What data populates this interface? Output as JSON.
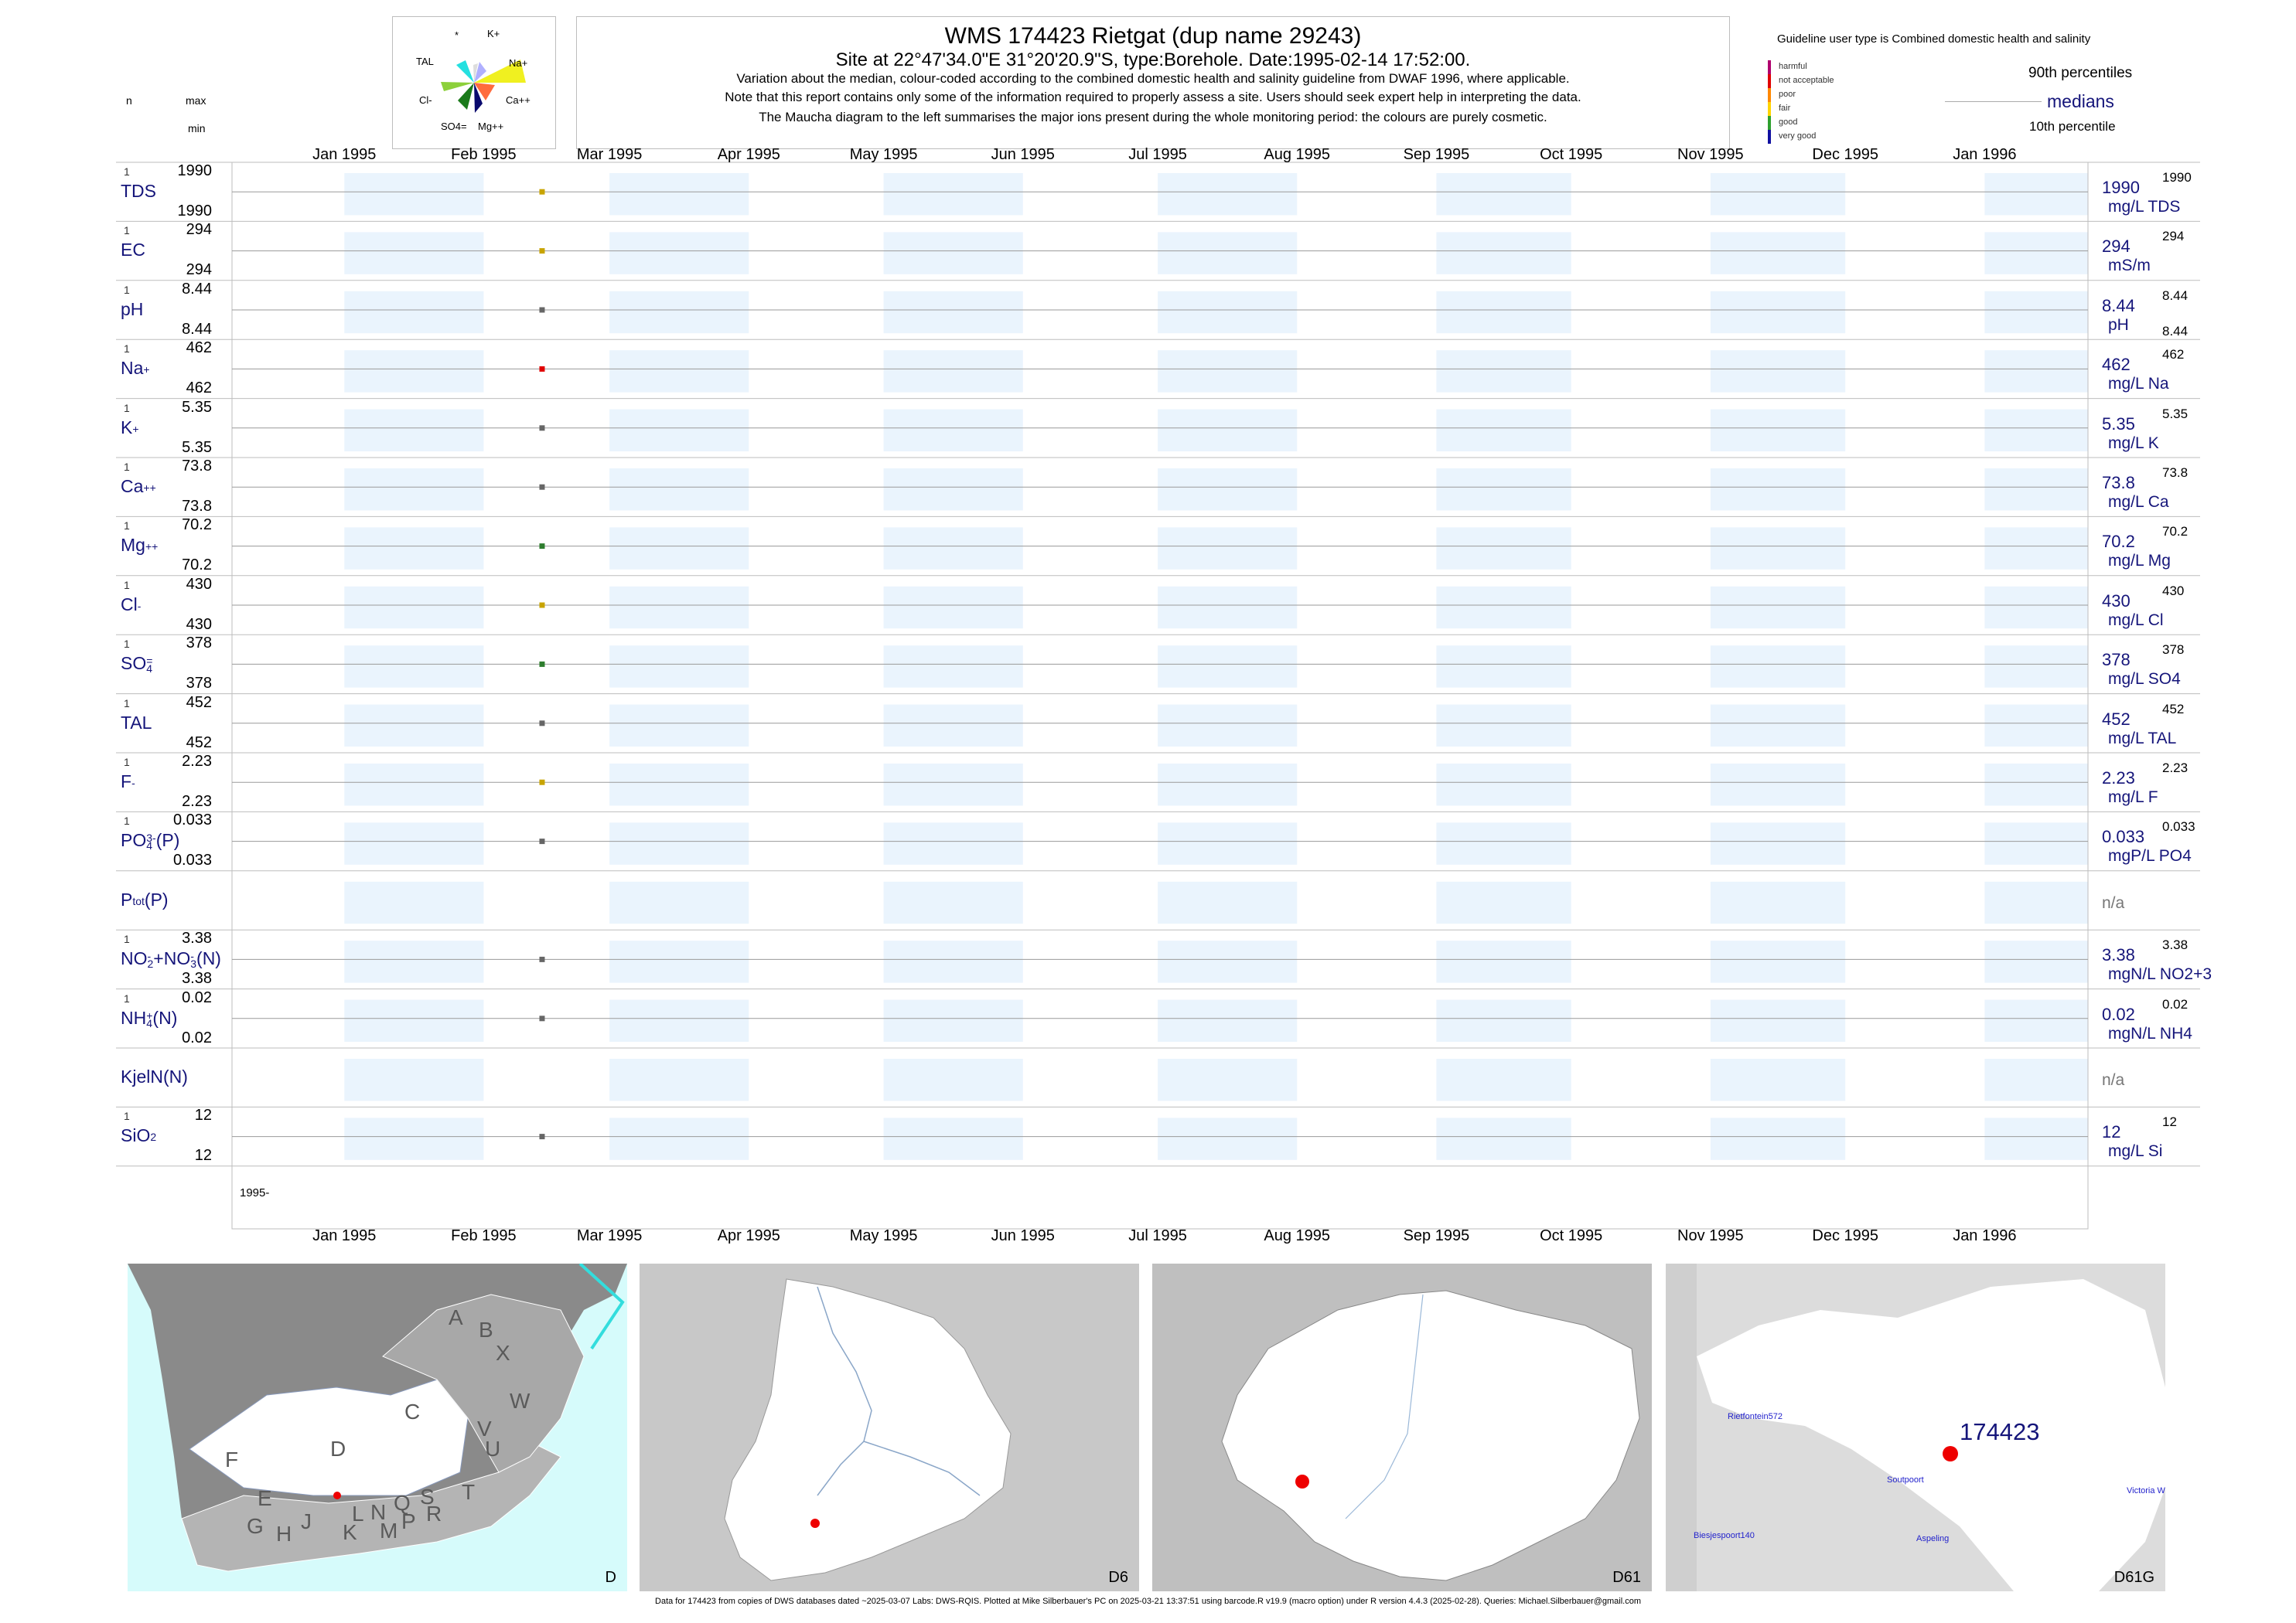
{
  "header": {
    "title": "WMS 174423  Rietgat (dup name 29243)",
    "subtitle": "Site at 22°47'34.0\"E 31°20'20.9\"S, type:Borehole. Date:1995-02-14 17:52:00.",
    "line1": "Variation about the median,  colour-coded according to the combined domestic health and salinity guideline from DWAF 1996, where applicable.",
    "line2": "Note that this report contains only some of the information required to properly assess a site. Users should seek expert help in interpreting the data.",
    "line3": "The Maucha diagram to the left summarises the major ions present during the whole monitoring period: the colours are purely cosmetic."
  },
  "left_header": {
    "n": "n",
    "max": "max",
    "min": "min"
  },
  "maucha": {
    "labels": [
      "*",
      "K+",
      "TAL",
      "Na+",
      "Cl-",
      "Ca++",
      "SO4=",
      "Mg++"
    ]
  },
  "guideline": {
    "title": "Guideline user type is Combined domestic health and salinity",
    "classes": [
      {
        "label": "harmful",
        "color": "#b0006e"
      },
      {
        "label": "not acceptable",
        "color": "#e00000"
      },
      {
        "label": "poor",
        "color": "#ff8800"
      },
      {
        "label": "fair",
        "color": "#ffd400"
      },
      {
        "label": "good",
        "color": "#2ea02e"
      },
      {
        "label": "very good",
        "color": "#1010a0"
      }
    ],
    "p90": "90th percentiles",
    "medians": "medians",
    "p10": "10th percentile"
  },
  "chart_data": {
    "type": "scatter",
    "x_axis": {
      "ticks": [
        "Jan 1995",
        "Feb 1995",
        "Mar 1995",
        "Apr 1995",
        "May 1995",
        "Jun 1995",
        "Jul 1995",
        "Aug 1995",
        "Sep 1995",
        "Oct 1995",
        "Nov 1995",
        "Dec 1995",
        "Jan 1996"
      ],
      "range": [
        "1994-12-07",
        "1996-01-24"
      ],
      "bottom_label": "1995-"
    },
    "sample_date": "1995-02-14",
    "series": [
      {
        "label": "TDS",
        "sub": "",
        "sup": "",
        "n": "1",
        "max": "1990",
        "min": "1990",
        "median": "1990",
        "unit": "mg/L TDS",
        "p90": "1990",
        "p10": "",
        "value": 1990,
        "color": "#c8a400"
      },
      {
        "label": "EC",
        "sub": "",
        "sup": "",
        "n": "1",
        "max": "294",
        "min": "294",
        "median": "294",
        "unit": "mS/m",
        "p90": "294",
        "p10": "",
        "value": 294,
        "color": "#c8a400"
      },
      {
        "label": "pH",
        "sub": "",
        "sup": "",
        "n": "1",
        "max": "8.44",
        "min": "8.44",
        "median": "8.44",
        "unit": "pH",
        "p90": "8.44",
        "p10": "8.44",
        "value": 8.44,
        "color": "#666666"
      },
      {
        "label": "Na",
        "sub": "",
        "sup": "+",
        "n": "1",
        "max": "462",
        "min": "462",
        "median": "462",
        "unit": "mg/L Na",
        "p90": "462",
        "p10": "",
        "value": 462,
        "color": "#e00000"
      },
      {
        "label": "K",
        "sub": "",
        "sup": "+",
        "n": "1",
        "max": "5.35",
        "min": "5.35",
        "median": "5.35",
        "unit": "mg/L K",
        "p90": "5.35",
        "p10": "",
        "value": 5.35,
        "color": "#666666"
      },
      {
        "label": "Ca",
        "sub": "",
        "sup": "++",
        "n": "1",
        "max": "73.8",
        "min": "73.8",
        "median": "73.8",
        "unit": "mg/L Ca",
        "p90": "73.8",
        "p10": "",
        "value": 73.8,
        "color": "#666666"
      },
      {
        "label": "Mg",
        "sub": "",
        "sup": "++",
        "n": "1",
        "max": "70.2",
        "min": "70.2",
        "median": "70.2",
        "unit": "mg/L Mg",
        "p90": "70.2",
        "p10": "",
        "value": 70.2,
        "color": "#2e7d2e"
      },
      {
        "label": "Cl",
        "sub": "",
        "sup": "-",
        "n": "1",
        "max": "430",
        "min": "430",
        "median": "430",
        "unit": "mg/L Cl",
        "p90": "430",
        "p10": "",
        "value": 430,
        "color": "#c8a400"
      },
      {
        "label": "SO",
        "sub": "4",
        "sup": "=",
        "n": "1",
        "max": "378",
        "min": "378",
        "median": "378",
        "unit": "mg/L SO4",
        "p90": "378",
        "p10": "",
        "value": 378,
        "color": "#2e7d2e"
      },
      {
        "label": "TAL",
        "sub": "",
        "sup": "",
        "n": "1",
        "max": "452",
        "min": "452",
        "median": "452",
        "unit": "mg/L TAL",
        "p90": "452",
        "p10": "",
        "value": 452,
        "color": "#666666"
      },
      {
        "label": "F",
        "sub": "",
        "sup": "-",
        "n": "1",
        "max": "2.23",
        "min": "2.23",
        "median": "2.23",
        "unit": "mg/L F",
        "p90": "2.23",
        "p10": "",
        "value": 2.23,
        "color": "#c8a400"
      },
      {
        "label": "PO",
        "sub": "4",
        "sup": "3-",
        "suffix": "(P)",
        "n": "1",
        "max": "0.033",
        "min": "0.033",
        "median": "0.033",
        "unit": "mgP/L PO4",
        "p90": "0.033",
        "p10": "",
        "value": 0.033,
        "color": "#666666"
      },
      {
        "label": "P",
        "sub": "tot",
        "sup": "",
        "suffix": "(P)",
        "n": "",
        "max": "",
        "min": "",
        "median": "",
        "unit": "",
        "na": "n/a",
        "p90": "",
        "p10": "",
        "value": null,
        "color": ""
      },
      {
        "label": "NO",
        "sub": "2",
        "sup": "-",
        "suffix": "+NO",
        "sub2": "3",
        "sup2": "-",
        "suffix2": "(N)",
        "n": "1",
        "max": "3.38",
        "min": "3.38",
        "median": "3.38",
        "unit": "mgN/L NO2+3",
        "p90": "3.38",
        "p10": "",
        "value": 3.38,
        "color": "#666666"
      },
      {
        "label": "NH",
        "sub": "4",
        "sup": "+",
        "suffix": "(N)",
        "n": "1",
        "max": "0.02",
        "min": "0.02",
        "median": "0.02",
        "unit": "mgN/L NH4",
        "p90": "0.02",
        "p10": "",
        "value": 0.02,
        "color": "#666666"
      },
      {
        "label": "KjelN(N)",
        "sub": "",
        "sup": "",
        "n": "",
        "max": "",
        "min": "",
        "median": "",
        "unit": "",
        "na": "n/a",
        "p90": "",
        "p10": "",
        "value": null,
        "color": ""
      },
      {
        "label": "SiO",
        "sub": "2",
        "sup": "",
        "n": "1",
        "max": "12",
        "min": "12",
        "median": "12",
        "unit": "mg/L Si",
        "p90": "12",
        "p10": "",
        "value": 12,
        "color": "#666666"
      }
    ]
  },
  "maps": [
    {
      "label": "D",
      "regions": [
        "A",
        "B",
        "X",
        "C",
        "W",
        "D",
        "V",
        "U",
        "T",
        "F",
        "E",
        "G",
        "H",
        "J",
        "K",
        "L",
        "M",
        "N",
        "P",
        "Q",
        "R",
        "S"
      ]
    },
    {
      "label": "D6"
    },
    {
      "label": "D61"
    },
    {
      "label": "D61G",
      "site": "174423",
      "places": [
        "Rietfontein572",
        "Soutpoort",
        "Victoria W",
        "Biesjespoort140",
        "Aspeling"
      ]
    }
  ],
  "footer": "Data for 174423 from copies of DWS databases dated ~2025-03-07 Labs: DWS-RQIS. Plotted at Mike Silberbauer's PC on 2025-03-21 13:37:51 using barcode.R v19.9 (macro option) under R version 4.4.3 (2025-02-28). Queries: Michael.Silberbauer@gmail.com"
}
